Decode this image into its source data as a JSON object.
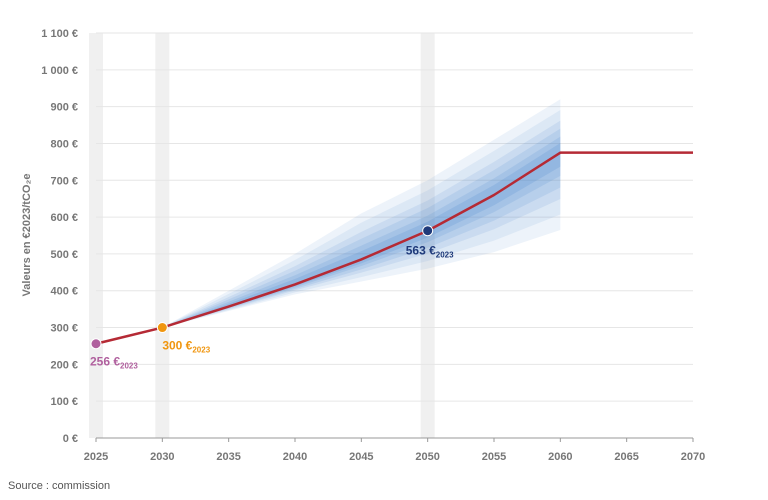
{
  "chart_data": {
    "type": "line",
    "ylabel": "Valeurs en €2023/tCO₂e",
    "x_ticks": [
      "2025",
      "2030",
      "2035",
      "2040",
      "2045",
      "2050",
      "2055",
      "2060",
      "2065",
      "2070"
    ],
    "y_ticks": [
      "0 €",
      "100 €",
      "200 €",
      "300 €",
      "400 €",
      "500 €",
      "600 €",
      "700 €",
      "800 €",
      "900 €",
      "1 000 €",
      "1 100 €"
    ],
    "xlim": [
      2025,
      2070
    ],
    "ylim": [
      0,
      1100
    ],
    "highlight_years": [
      2025,
      2030,
      2050
    ],
    "series": [
      {
        "color": "#b52a35",
        "x": [
          2025,
          2030,
          2035,
          2040,
          2045,
          2050,
          2055,
          2060,
          2070
        ],
        "y": [
          256,
          300,
          357,
          417,
          485,
          563,
          660,
          775,
          775
        ]
      }
    ],
    "uncertainty_band": {
      "color": "#4a86cf",
      "x": [
        2030,
        2035,
        2040,
        2045,
        2050,
        2055,
        2060
      ],
      "upper": [
        300,
        400,
        500,
        610,
        700,
        810,
        920
      ],
      "lower": [
        300,
        345,
        390,
        425,
        460,
        505,
        565
      ]
    },
    "annotations": [
      {
        "x": 2025,
        "y": 256,
        "label": "256 €",
        "sub": "2023",
        "color": "#b0609e"
      },
      {
        "x": 2030,
        "y": 300,
        "label": "300 €",
        "sub": "2023",
        "color": "#f0960f"
      },
      {
        "x": 2050,
        "y": 563,
        "label": "563 €",
        "sub": "2023",
        "color": "#1f3a7a"
      }
    ]
  },
  "source": "Source : commission"
}
